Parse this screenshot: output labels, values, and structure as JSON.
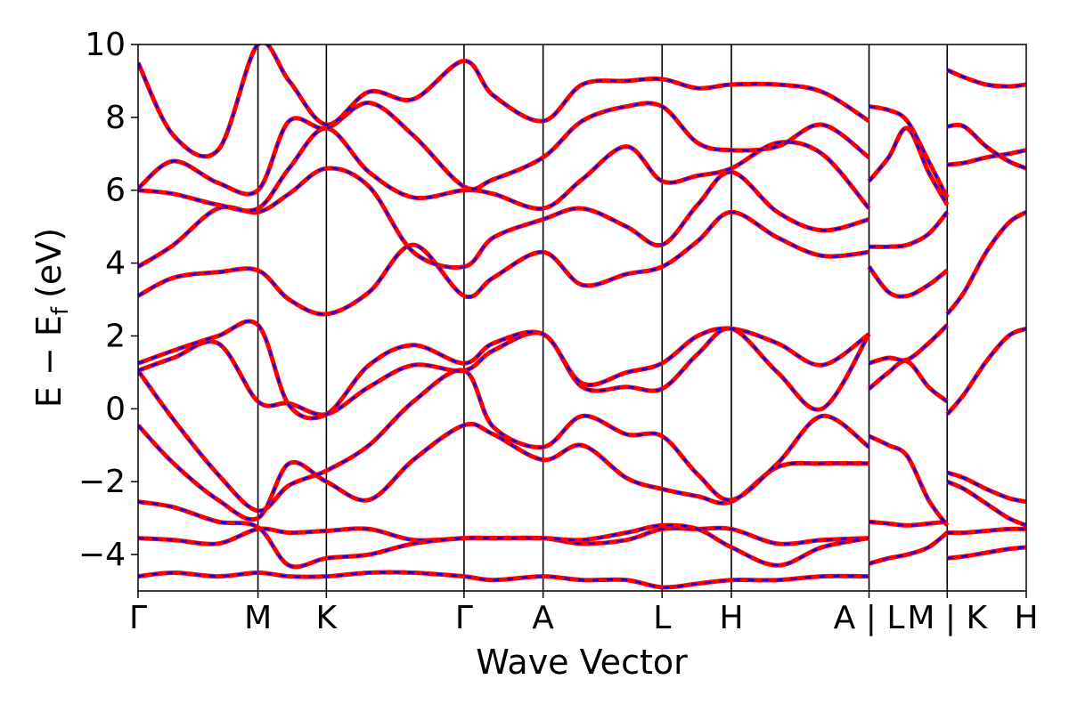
{
  "chart_data": {
    "type": "line",
    "xlabel": "Wave Vector",
    "ylabel": {
      "main": "E − E",
      "subscript": "f",
      "unit": "(eV)"
    },
    "ylim": [
      -5,
      10
    ],
    "yticks": [
      -4,
      -2,
      0,
      2,
      4,
      6,
      8,
      10
    ],
    "ytick_labels": [
      "−4",
      "−2",
      "0",
      "2",
      "4",
      "6",
      "8",
      "10"
    ],
    "xlim": [
      0,
      1
    ],
    "kpath": [
      {
        "label": "Γ",
        "x": 0.0
      },
      {
        "label": "M",
        "x": 0.135
      },
      {
        "label": "K",
        "x": 0.212
      },
      {
        "label": "Γ",
        "x": 0.367
      },
      {
        "label": "A",
        "x": 0.456
      },
      {
        "label": "L",
        "x": 0.59
      },
      {
        "label": "H",
        "x": 0.668
      },
      {
        "label": "A | L",
        "x": 0.823
      },
      {
        "label": "M | K",
        "x": 0.911
      },
      {
        "label": "H",
        "x": 1.0
      }
    ],
    "series_style": [
      {
        "color": "#ff0000",
        "style": "solid"
      },
      {
        "color": "#0000ff",
        "style": "dashed"
      }
    ],
    "grid": false,
    "bands": [
      {
        "x": [
          0,
          0.04,
          0.09,
          0.135,
          0.17,
          0.212,
          0.26,
          0.31,
          0.367,
          0.4,
          0.456,
          0.5,
          0.55,
          0.59,
          0.63,
          0.668,
          0.72,
          0.77,
          0.823
        ],
        "y": [
          -4.6,
          -4.5,
          -4.6,
          -4.5,
          -4.6,
          -4.6,
          -4.5,
          -4.5,
          -4.6,
          -4.7,
          -4.6,
          -4.7,
          -4.7,
          -4.9,
          -4.8,
          -4.7,
          -4.7,
          -4.6,
          -4.6
        ]
      },
      {
        "x": [
          0,
          0.04,
          0.09,
          0.135,
          0.17,
          0.212,
          0.26,
          0.31,
          0.367,
          0.4,
          0.456,
          0.5,
          0.55,
          0.59,
          0.63,
          0.668,
          0.72,
          0.77,
          0.823
        ],
        "y": [
          -3.55,
          -3.6,
          -3.7,
          -3.3,
          -3.4,
          -3.35,
          -3.3,
          -3.6,
          -3.55,
          -3.55,
          -3.55,
          -3.7,
          -3.6,
          -3.3,
          -3.3,
          -3.3,
          -3.7,
          -3.6,
          -3.55
        ]
      },
      {
        "x": [
          0,
          0.04,
          0.09,
          0.135,
          0.17,
          0.212,
          0.26,
          0.31,
          0.367,
          0.4,
          0.456,
          0.5,
          0.55,
          0.59,
          0.63,
          0.668,
          0.72,
          0.77,
          0.823
        ],
        "y": [
          -2.55,
          -2.7,
          -3.1,
          -3.25,
          -4.3,
          -4.1,
          -4.0,
          -3.7,
          -3.55,
          -3.55,
          -3.55,
          -3.6,
          -3.4,
          -3.2,
          -3.3,
          -3.8,
          -4.3,
          -3.8,
          -3.55
        ]
      },
      {
        "x": [
          0,
          0.04,
          0.09,
          0.135,
          0.17,
          0.212,
          0.26,
          0.31,
          0.367,
          0.4,
          0.456,
          0.5,
          0.55,
          0.59,
          0.63,
          0.668,
          0.72,
          0.77,
          0.823
        ],
        "y": [
          -0.45,
          -1.5,
          -2.5,
          -3.0,
          -1.5,
          -2.0,
          -2.5,
          -1.4,
          -0.45,
          -0.7,
          -1.4,
          -1.0,
          -1.9,
          -2.2,
          -2.4,
          -2.55,
          -1.6,
          -1.5,
          -1.5
        ]
      },
      {
        "x": [
          0,
          0.04,
          0.09,
          0.135,
          0.17,
          0.212,
          0.26,
          0.31,
          0.367,
          0.4,
          0.456,
          0.5,
          0.55,
          0.59,
          0.63,
          0.668,
          0.72,
          0.77,
          0.823
        ],
        "y": [
          1.05,
          -0.3,
          -1.8,
          -2.8,
          -2.1,
          -1.7,
          -1.0,
          0.2,
          1.05,
          -0.5,
          -1.05,
          -0.2,
          -0.7,
          -0.75,
          -1.8,
          -2.5,
          -1.5,
          -0.2,
          -1.05
        ]
      },
      {
        "x": [
          0,
          0.04,
          0.09,
          0.135,
          0.17,
          0.212,
          0.26,
          0.31,
          0.367,
          0.4,
          0.456,
          0.5,
          0.55,
          0.59,
          0.63,
          0.668,
          0.72,
          0.77,
          0.823
        ],
        "y": [
          1.05,
          1.4,
          1.8,
          0.2,
          0.15,
          -0.15,
          0.6,
          1.2,
          1.05,
          1.6,
          2.05,
          0.6,
          0.6,
          0.55,
          1.5,
          2.2,
          1.0,
          0.0,
          2.05
        ]
      },
      {
        "x": [
          0,
          0.04,
          0.09,
          0.135,
          0.17,
          0.212,
          0.26,
          0.31,
          0.367,
          0.4,
          0.456,
          0.5,
          0.55,
          0.59,
          0.63,
          0.668,
          0.72,
          0.77,
          0.823
        ],
        "y": [
          1.25,
          1.6,
          2.0,
          2.3,
          0.1,
          -0.15,
          1.2,
          1.75,
          1.25,
          1.8,
          2.05,
          0.7,
          1.0,
          1.25,
          2.0,
          2.2,
          1.8,
          1.2,
          2.05
        ]
      },
      {
        "x": [
          0,
          0.04,
          0.09,
          0.135,
          0.17,
          0.212,
          0.26,
          0.31,
          0.367,
          0.4,
          0.456,
          0.5,
          0.55,
          0.59,
          0.63,
          0.668,
          0.72,
          0.77,
          0.823
        ],
        "y": [
          3.1,
          3.6,
          3.75,
          3.8,
          3.0,
          2.6,
          3.2,
          4.5,
          3.1,
          3.6,
          4.3,
          3.4,
          3.7,
          3.9,
          4.6,
          5.4,
          4.7,
          4.2,
          4.3
        ]
      },
      {
        "x": [
          0,
          0.04,
          0.09,
          0.135,
          0.17,
          0.212,
          0.26,
          0.31,
          0.367,
          0.4,
          0.456,
          0.5,
          0.55,
          0.59,
          0.63,
          0.668,
          0.72,
          0.77,
          0.823
        ],
        "y": [
          3.9,
          4.5,
          5.5,
          5.4,
          5.9,
          6.6,
          6.1,
          4.3,
          3.9,
          4.7,
          5.2,
          5.5,
          5.0,
          4.5,
          5.6,
          6.5,
          5.4,
          4.9,
          5.2
        ]
      },
      {
        "x": [
          0,
          0.04,
          0.09,
          0.135,
          0.17,
          0.212,
          0.26,
          0.31,
          0.367,
          0.4,
          0.456,
          0.5,
          0.55,
          0.59,
          0.63,
          0.668,
          0.72,
          0.77,
          0.823
        ],
        "y": [
          6.0,
          5.9,
          5.6,
          5.5,
          6.6,
          7.7,
          6.5,
          5.8,
          6.0,
          5.9,
          5.5,
          6.3,
          7.2,
          6.25,
          6.4,
          6.6,
          7.3,
          7.0,
          5.5
        ]
      },
      {
        "x": [
          0,
          0.04,
          0.09,
          0.135,
          0.17,
          0.212,
          0.26,
          0.31,
          0.367,
          0.4,
          0.456,
          0.5,
          0.55,
          0.59,
          0.63,
          0.668,
          0.72,
          0.77,
          0.823
        ],
        "y": [
          6.05,
          6.8,
          6.2,
          6.0,
          7.9,
          7.7,
          8.4,
          7.5,
          6.1,
          6.3,
          6.9,
          7.9,
          8.3,
          8.3,
          7.3,
          7.1,
          7.2,
          7.8,
          6.9
        ]
      },
      {
        "x": [
          0,
          0.04,
          0.09,
          0.135,
          0.17,
          0.212,
          0.26,
          0.31,
          0.367,
          0.4,
          0.456,
          0.5,
          0.55,
          0.59,
          0.63,
          0.668,
          0.72,
          0.77,
          0.823
        ],
        "y": [
          9.5,
          7.5,
          7.1,
          10.0,
          9.0,
          7.8,
          8.7,
          8.5,
          9.55,
          8.6,
          7.9,
          8.9,
          9.0,
          9.05,
          8.8,
          8.9,
          8.9,
          8.7,
          7.9
        ]
      }
    ],
    "segment_bands": [
      {
        "x": [
          0.823,
          0.845,
          0.866,
          0.89,
          0.911
        ],
        "y": [
          -4.25,
          -4.1,
          -4.0,
          -3.8,
          -3.4
        ]
      },
      {
        "x": [
          0.823,
          0.845,
          0.866,
          0.89,
          0.911
        ],
        "y": [
          -3.1,
          -3.15,
          -3.2,
          -3.15,
          -3.1
        ]
      },
      {
        "x": [
          0.823,
          0.845,
          0.866,
          0.89,
          0.911
        ],
        "y": [
          -0.75,
          -1.0,
          -1.3,
          -2.5,
          -3.2
        ]
      },
      {
        "x": [
          0.823,
          0.845,
          0.866,
          0.89,
          0.911
        ],
        "y": [
          0.55,
          1.0,
          1.3,
          0.6,
          0.2
        ]
      },
      {
        "x": [
          0.823,
          0.845,
          0.866,
          0.89,
          0.911
        ],
        "y": [
          1.25,
          1.4,
          1.35,
          1.8,
          2.3
        ]
      },
      {
        "x": [
          0.823,
          0.845,
          0.866,
          0.89,
          0.911
        ],
        "y": [
          3.9,
          3.2,
          3.1,
          3.4,
          3.8
        ]
      },
      {
        "x": [
          0.823,
          0.845,
          0.866,
          0.89,
          0.911
        ],
        "y": [
          4.45,
          4.45,
          4.5,
          4.8,
          5.4
        ]
      },
      {
        "x": [
          0.823,
          0.845,
          0.866,
          0.89,
          0.911
        ],
        "y": [
          6.25,
          6.9,
          7.7,
          6.5,
          5.6
        ]
      },
      {
        "x": [
          0.823,
          0.845,
          0.866,
          0.89,
          0.911
        ],
        "y": [
          8.3,
          8.2,
          7.9,
          6.8,
          5.8
        ]
      },
      {
        "x": [
          0.911,
          0.93,
          0.955,
          0.98,
          1.0
        ],
        "y": [
          -4.1,
          -4.05,
          -3.95,
          -3.85,
          -3.8
        ]
      },
      {
        "x": [
          0.911,
          0.93,
          0.955,
          0.98,
          1.0
        ],
        "y": [
          -3.4,
          -3.4,
          -3.35,
          -3.3,
          -3.3
        ]
      },
      {
        "x": [
          0.911,
          0.93,
          0.955,
          0.98,
          1.0
        ],
        "y": [
          -2.0,
          -2.2,
          -2.6,
          -3.0,
          -3.2
        ]
      },
      {
        "x": [
          0.911,
          0.93,
          0.955,
          0.98,
          1.0
        ],
        "y": [
          -1.75,
          -1.9,
          -2.2,
          -2.45,
          -2.55
        ]
      },
      {
        "x": [
          0.911,
          0.93,
          0.955,
          0.98,
          1.0
        ],
        "y": [
          -0.15,
          0.4,
          1.3,
          2.0,
          2.2
        ]
      },
      {
        "x": [
          0.911,
          0.93,
          0.955,
          0.98,
          1.0
        ],
        "y": [
          2.6,
          3.2,
          4.3,
          5.1,
          5.4
        ]
      },
      {
        "x": [
          0.911,
          0.93,
          0.955,
          0.98,
          1.0
        ],
        "y": [
          6.7,
          6.75,
          6.9,
          7.0,
          7.1
        ]
      },
      {
        "x": [
          0.911,
          0.93,
          0.955,
          0.98,
          1.0
        ],
        "y": [
          7.75,
          7.75,
          7.2,
          6.8,
          6.6
        ]
      },
      {
        "x": [
          0.911,
          0.93,
          0.955,
          0.98,
          1.0
        ],
        "y": [
          9.3,
          9.1,
          8.9,
          8.85,
          8.9
        ]
      }
    ]
  }
}
